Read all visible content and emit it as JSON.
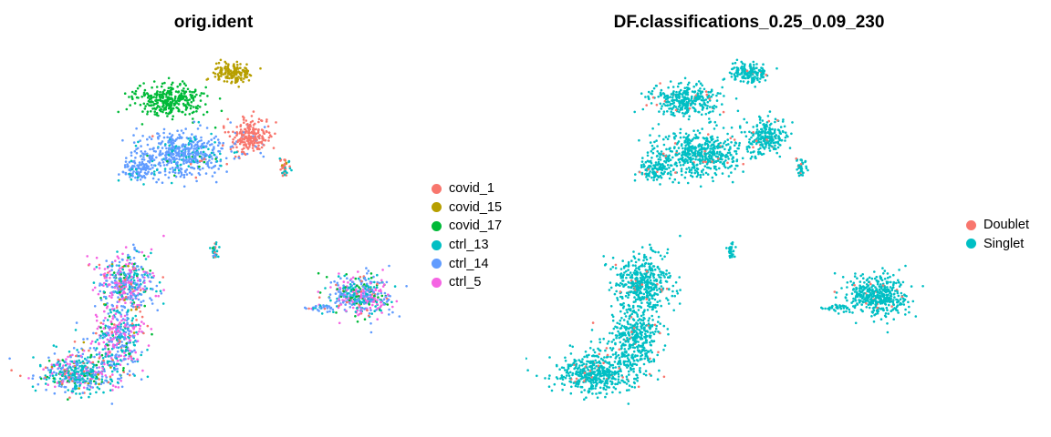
{
  "chart_data": [
    {
      "type": "scatter",
      "title": "orig.ident",
      "xlabel": "",
      "ylabel": "",
      "axes_visible": false,
      "grid": false,
      "legend_position": "right",
      "series": [
        {
          "name": "covid_1",
          "color": "#F8766D"
        },
        {
          "name": "covid_15",
          "color": "#B79F00"
        },
        {
          "name": "covid_17",
          "color": "#00BA38"
        },
        {
          "name": "ctrl_13",
          "color": "#00BFC4"
        },
        {
          "name": "ctrl_14",
          "color": "#619CFF"
        },
        {
          "name": "ctrl_5",
          "color": "#F564E3"
        }
      ]
    },
    {
      "type": "scatter",
      "title": "DF.classifications_0.25_0.09_230",
      "xlabel": "",
      "ylabel": "",
      "axes_visible": false,
      "grid": false,
      "legend_position": "right",
      "series": [
        {
          "name": "Doublet",
          "color": "#F8766D"
        },
        {
          "name": "Singlet",
          "color": "#00BFC4"
        }
      ]
    }
  ]
}
